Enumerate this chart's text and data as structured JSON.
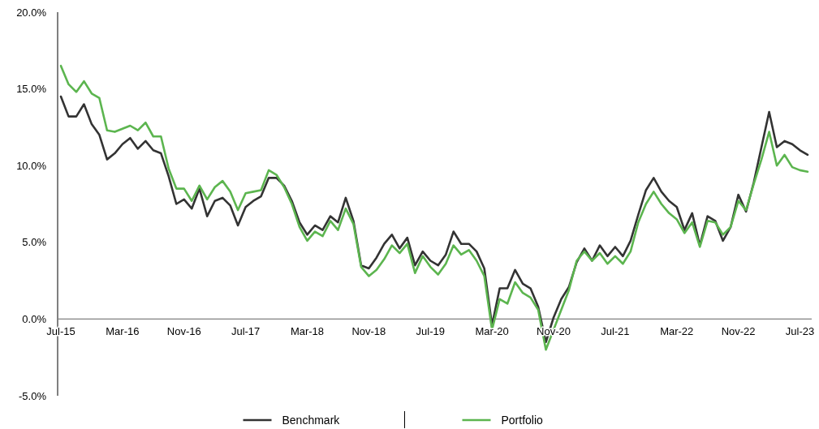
{
  "chart_data": {
    "type": "line",
    "categories": [
      "Jul-15",
      null,
      null,
      null,
      null,
      null,
      null,
      null,
      "Mar-16",
      null,
      null,
      null,
      null,
      null,
      null,
      null,
      "Nov-16",
      null,
      null,
      null,
      null,
      null,
      null,
      null,
      "Jul-17",
      null,
      null,
      null,
      null,
      null,
      null,
      null,
      "Mar-18",
      null,
      null,
      null,
      null,
      null,
      null,
      null,
      "Nov-18",
      null,
      null,
      null,
      null,
      null,
      null,
      null,
      "Jul-19",
      null,
      null,
      null,
      null,
      null,
      null,
      null,
      "Mar-20",
      null,
      null,
      null,
      null,
      null,
      null,
      null,
      "Nov-20",
      null,
      null,
      null,
      null,
      null,
      null,
      null,
      "Jul-21",
      null,
      null,
      null,
      null,
      null,
      null,
      null,
      "Mar-22",
      null,
      null,
      null,
      null,
      null,
      null,
      null,
      "Nov-22",
      null,
      null,
      null,
      null,
      null,
      null,
      null,
      "Jul-23",
      null
    ],
    "series": [
      {
        "name": "Benchmark",
        "color": "#333333",
        "values": [
          14.5,
          13.2,
          13.2,
          14.0,
          12.7,
          12.0,
          10.4,
          10.8,
          11.4,
          11.8,
          11.1,
          11.6,
          11.0,
          10.8,
          9.3,
          7.5,
          7.8,
          7.2,
          8.5,
          6.7,
          7.7,
          7.9,
          7.4,
          6.1,
          7.3,
          7.7,
          8.0,
          9.2,
          9.2,
          8.7,
          7.7,
          6.3,
          5.5,
          6.1,
          5.8,
          6.7,
          6.3,
          7.9,
          6.4,
          3.5,
          3.3,
          4.0,
          4.9,
          5.5,
          4.6,
          5.3,
          3.5,
          4.4,
          3.8,
          3.5,
          4.2,
          5.7,
          4.9,
          4.9,
          4.4,
          3.3,
          -0.4,
          2.0,
          2.0,
          3.2,
          2.3,
          2.0,
          0.8,
          -1.5,
          0.1,
          1.3,
          2.1,
          3.7,
          4.6,
          3.8,
          4.8,
          4.1,
          4.7,
          4.1,
          5.1,
          6.8,
          8.4,
          9.2,
          8.3,
          7.7,
          7.3,
          5.8,
          6.9,
          4.8,
          6.7,
          6.4,
          5.1,
          6.0,
          8.1,
          7.0,
          8.9,
          11.2,
          13.5,
          11.2,
          11.6,
          11.4,
          11.0,
          10.7
        ]
      },
      {
        "name": "Portfolio",
        "color": "#5cb54f",
        "values": [
          16.5,
          15.3,
          14.8,
          15.5,
          14.7,
          14.4,
          12.3,
          12.2,
          12.4,
          12.6,
          12.3,
          12.8,
          11.9,
          11.9,
          9.8,
          8.5,
          8.5,
          7.7,
          8.7,
          7.8,
          8.6,
          9.0,
          8.3,
          7.1,
          8.2,
          8.3,
          8.4,
          9.7,
          9.4,
          8.6,
          7.5,
          6.0,
          5.1,
          5.7,
          5.4,
          6.4,
          5.8,
          7.2,
          6.2,
          3.4,
          2.8,
          3.2,
          3.9,
          4.8,
          4.3,
          4.9,
          3.0,
          4.1,
          3.4,
          2.9,
          3.6,
          4.8,
          4.2,
          4.5,
          3.8,
          2.8,
          -0.7,
          1.3,
          1.0,
          2.4,
          1.7,
          1.4,
          0.6,
          -2.0,
          -0.7,
          0.6,
          1.9,
          3.8,
          4.4,
          3.8,
          4.3,
          3.6,
          4.1,
          3.6,
          4.4,
          6.3,
          7.5,
          8.3,
          7.5,
          6.9,
          6.5,
          5.6,
          6.3,
          4.7,
          6.4,
          6.3,
          5.5,
          6.0,
          7.7,
          7.1,
          8.8,
          10.4,
          12.2,
          10.0,
          10.7,
          9.9,
          9.7,
          9.6
        ]
      }
    ],
    "ylim": [
      -5,
      20
    ],
    "yticks": [
      {
        "value": -5,
        "label": "-5.0%"
      },
      {
        "value": 0,
        "label": "0.0%"
      },
      {
        "value": 5,
        "label": "5.0%"
      },
      {
        "value": 10,
        "label": "10.0%"
      },
      {
        "value": 15,
        "label": "15.0%"
      },
      {
        "value": 20,
        "label": "20.0%"
      }
    ],
    "legend": "bottom"
  }
}
